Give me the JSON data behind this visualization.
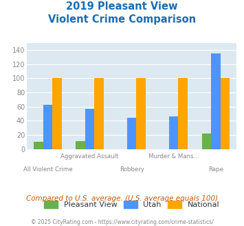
{
  "title_line1": "2019 Pleasant View",
  "title_line2": "Violent Crime Comparison",
  "categories": [
    "All Violent Crime",
    "Aggravated Assault",
    "Robbery",
    "Murder & Mans...",
    "Rape"
  ],
  "top_labels": [
    "",
    "Aggravated Assault",
    "",
    "Murder & Mans...",
    ""
  ],
  "bottom_labels": [
    "All Violent Crime",
    "",
    "Robbery",
    "",
    "Rape"
  ],
  "pleasant_view": [
    10,
    11,
    0,
    0,
    22
  ],
  "utah": [
    63,
    57,
    44,
    46,
    135
  ],
  "national": [
    100,
    100,
    100,
    100,
    100
  ],
  "bar_colors": {
    "pleasant_view": "#6ab04c",
    "utah": "#4d94ff",
    "national": "#ffa500"
  },
  "ylim": [
    0,
    150
  ],
  "yticks": [
    0,
    20,
    40,
    60,
    80,
    100,
    120,
    140
  ],
  "title_color": "#1a6db5",
  "plot_bg_color": "#dce9f0",
  "fig_bg_color": "#ffffff",
  "grid_color": "#ffffff",
  "tick_color": "#888888",
  "subtitle_text": "Compared to U.S. average. (U.S. average equals 100)",
  "subtitle_color": "#cc5500",
  "footer_text": "© 2025 CityRating.com - https://www.cityrating.com/crime-statistics/",
  "footer_color": "#888888",
  "legend_labels": [
    "Pleasant View",
    "Utah",
    "National"
  ]
}
